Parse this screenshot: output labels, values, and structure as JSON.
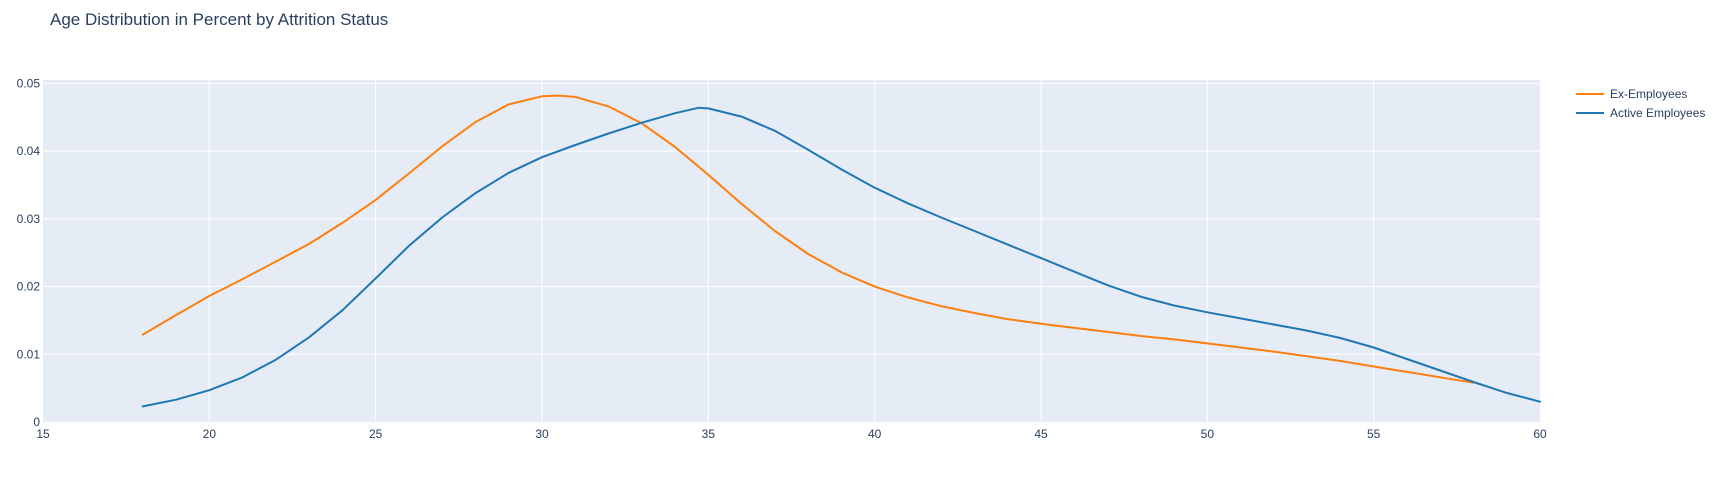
{
  "chart_data": {
    "type": "line",
    "title": "Age Distribution in Percent by Attrition Status",
    "xlabel": "",
    "ylabel": "",
    "xlim": [
      15,
      60
    ],
    "ylim": [
      0,
      0.0505
    ],
    "x_ticks": [
      15,
      20,
      25,
      30,
      35,
      40,
      45,
      50,
      55,
      60
    ],
    "y_ticks": [
      0,
      0.01,
      0.02,
      0.03,
      0.04,
      0.05
    ],
    "y_tick_labels": [
      "0",
      "0.01",
      "0.02",
      "0.03",
      "0.04",
      "0.05"
    ],
    "grid": true,
    "legend_position": "top-right",
    "series": [
      {
        "name": "Ex-Employees",
        "color": "#ff7f0e",
        "points": [
          [
            18,
            0.0129
          ],
          [
            19,
            0.0158
          ],
          [
            20,
            0.0186
          ],
          [
            21,
            0.0211
          ],
          [
            22,
            0.0237
          ],
          [
            23,
            0.0263
          ],
          [
            24,
            0.0294
          ],
          [
            25,
            0.0328
          ],
          [
            26,
            0.0367
          ],
          [
            27,
            0.0407
          ],
          [
            28,
            0.0443
          ],
          [
            29,
            0.0469
          ],
          [
            30,
            0.0481
          ],
          [
            30.5,
            0.0482
          ],
          [
            31,
            0.048
          ],
          [
            32,
            0.0466
          ],
          [
            33,
            0.0441
          ],
          [
            34,
            0.0406
          ],
          [
            35,
            0.0365
          ],
          [
            36,
            0.0322
          ],
          [
            37,
            0.0282
          ],
          [
            38,
            0.0248
          ],
          [
            39,
            0.0221
          ],
          [
            40,
            0.02
          ],
          [
            41,
            0.0184
          ],
          [
            42,
            0.0171
          ],
          [
            43,
            0.0161
          ],
          [
            44,
            0.0152
          ],
          [
            45,
            0.0145
          ],
          [
            46,
            0.0139
          ],
          [
            47,
            0.0133
          ],
          [
            48,
            0.0127
          ],
          [
            49,
            0.0122
          ],
          [
            50,
            0.0116
          ],
          [
            51,
            0.011
          ],
          [
            52,
            0.0104
          ],
          [
            53,
            0.0097
          ],
          [
            54,
            0.009
          ],
          [
            55,
            0.0082
          ],
          [
            56,
            0.0074
          ],
          [
            57,
            0.0066
          ],
          [
            58,
            0.0058
          ]
        ]
      },
      {
        "name": "Active Employees",
        "color": "#1f77b4",
        "points": [
          [
            18,
            0.0023
          ],
          [
            19,
            0.0033
          ],
          [
            20,
            0.0047
          ],
          [
            21,
            0.0066
          ],
          [
            22,
            0.0092
          ],
          [
            23,
            0.0125
          ],
          [
            24,
            0.0165
          ],
          [
            25,
            0.0212
          ],
          [
            26,
            0.026
          ],
          [
            27,
            0.0302
          ],
          [
            28,
            0.0338
          ],
          [
            29,
            0.0368
          ],
          [
            30,
            0.0391
          ],
          [
            31,
            0.0409
          ],
          [
            32,
            0.0426
          ],
          [
            33,
            0.0442
          ],
          [
            34,
            0.0456
          ],
          [
            34.7,
            0.0464
          ],
          [
            35,
            0.0463
          ],
          [
            36,
            0.0451
          ],
          [
            37,
            0.043
          ],
          [
            38,
            0.0402
          ],
          [
            39,
            0.0373
          ],
          [
            40,
            0.0346
          ],
          [
            41,
            0.0323
          ],
          [
            42,
            0.0302
          ],
          [
            43,
            0.0282
          ],
          [
            44,
            0.0262
          ],
          [
            45,
            0.0242
          ],
          [
            46,
            0.0222
          ],
          [
            47,
            0.0202
          ],
          [
            48,
            0.0185
          ],
          [
            49,
            0.0172
          ],
          [
            50,
            0.0162
          ],
          [
            51,
            0.0153
          ],
          [
            52,
            0.0144
          ],
          [
            53,
            0.0135
          ],
          [
            54,
            0.0124
          ],
          [
            55,
            0.011
          ],
          [
            56,
            0.0093
          ],
          [
            57,
            0.0076
          ],
          [
            58,
            0.0059
          ],
          [
            59,
            0.0043
          ],
          [
            60,
            0.003
          ]
        ]
      }
    ]
  }
}
